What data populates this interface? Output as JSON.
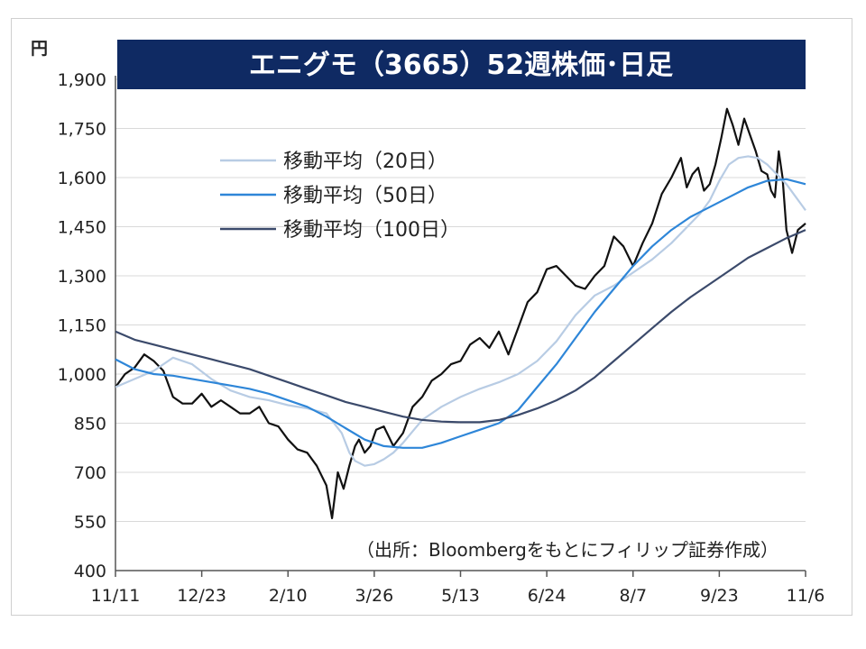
{
  "chart_data": {
    "type": "line",
    "title": "エニグモ（3665）52週株価･日足",
    "unit_label": "円",
    "source_note": "（出所：Bloombergをもとにフィリップ証券作成）",
    "ylim": [
      400,
      1900
    ],
    "y_ticks": [
      400,
      550,
      700,
      850,
      1000,
      1150,
      1300,
      1450,
      1600,
      1750,
      1900
    ],
    "y_tick_labels": [
      "400",
      "550",
      "700",
      "850",
      "1,000",
      "1,150",
      "1,300",
      "1,450",
      "1,600",
      "1,750",
      "1,900"
    ],
    "x_tick_labels": [
      "11/11",
      "12/23",
      "2/10",
      "3/26",
      "5/13",
      "6/24",
      "8/7",
      "9/23",
      "11/6"
    ],
    "x_range": [
      0,
      360
    ],
    "x_ticks": [
      0,
      45,
      90,
      135,
      180,
      225,
      270,
      315,
      360
    ],
    "grid": true,
    "legend_position": "top-left",
    "series": [
      {
        "name": "移動平均（20日）",
        "color": "#b8cce4",
        "x": [
          0,
          10,
          20,
          30,
          40,
          50,
          60,
          70,
          80,
          90,
          100,
          110,
          118,
          122,
          125,
          130,
          135,
          140,
          145,
          150,
          155,
          160,
          170,
          180,
          190,
          200,
          210,
          220,
          230,
          240,
          250,
          260,
          270,
          280,
          290,
          300,
          305,
          310,
          315,
          320,
          325,
          330,
          335,
          340,
          345,
          350,
          355,
          360
        ],
        "values": [
          960,
          985,
          1010,
          1050,
          1030,
          985,
          950,
          930,
          920,
          905,
          895,
          880,
          820,
          760,
          735,
          720,
          725,
          740,
          760,
          790,
          825,
          860,
          900,
          930,
          955,
          975,
          1000,
          1040,
          1100,
          1180,
          1240,
          1270,
          1310,
          1350,
          1400,
          1460,
          1490,
          1530,
          1590,
          1640,
          1660,
          1665,
          1660,
          1640,
          1610,
          1580,
          1540,
          1500
        ]
      },
      {
        "name": "移動平均（50日）",
        "color": "#2e86d8",
        "x": [
          0,
          10,
          20,
          30,
          40,
          50,
          60,
          70,
          80,
          90,
          100,
          110,
          120,
          130,
          140,
          150,
          160,
          170,
          180,
          190,
          200,
          210,
          220,
          230,
          240,
          250,
          260,
          270,
          280,
          290,
          300,
          310,
          320,
          330,
          340,
          350,
          360
        ],
        "values": [
          1045,
          1015,
          1000,
          995,
          985,
          975,
          965,
          955,
          940,
          920,
          900,
          870,
          835,
          800,
          780,
          775,
          775,
          790,
          810,
          830,
          850,
          890,
          960,
          1030,
          1110,
          1190,
          1260,
          1330,
          1390,
          1440,
          1480,
          1510,
          1540,
          1570,
          1590,
          1595,
          1580
        ]
      },
      {
        "name": "移動平均（100日）",
        "color": "#3b4a6b",
        "x": [
          0,
          10,
          20,
          30,
          40,
          50,
          60,
          70,
          80,
          90,
          100,
          110,
          120,
          130,
          140,
          150,
          160,
          170,
          180,
          190,
          200,
          210,
          220,
          230,
          240,
          250,
          260,
          270,
          280,
          290,
          300,
          310,
          320,
          330,
          340,
          350,
          360
        ],
        "values": [
          1130,
          1105,
          1090,
          1075,
          1060,
          1045,
          1030,
          1015,
          995,
          975,
          955,
          935,
          915,
          900,
          885,
          870,
          860,
          855,
          853,
          853,
          860,
          875,
          895,
          920,
          950,
          990,
          1040,
          1090,
          1140,
          1190,
          1235,
          1275,
          1315,
          1355,
          1385,
          1415,
          1440
        ]
      },
      {
        "name": "",
        "color": "#111111",
        "x": [
          0,
          5,
          10,
          15,
          20,
          25,
          30,
          35,
          40,
          45,
          50,
          55,
          60,
          65,
          70,
          75,
          80,
          85,
          90,
          95,
          100,
          105,
          110,
          113,
          116,
          119,
          122,
          125,
          127,
          130,
          133,
          136,
          140,
          145,
          150,
          155,
          160,
          165,
          170,
          175,
          180,
          185,
          190,
          195,
          200,
          205,
          210,
          215,
          220,
          225,
          230,
          235,
          240,
          245,
          250,
          255,
          260,
          265,
          270,
          275,
          280,
          285,
          290,
          295,
          298,
          301,
          304,
          307,
          310,
          313,
          316,
          319,
          322,
          325,
          328,
          331,
          334,
          337,
          340,
          342,
          344,
          346,
          348,
          350,
          353,
          356,
          360
        ],
        "values": [
          960,
          1000,
          1020,
          1060,
          1040,
          1010,
          930,
          910,
          910,
          940,
          900,
          920,
          900,
          880,
          880,
          900,
          850,
          840,
          800,
          770,
          760,
          720,
          660,
          560,
          700,
          650,
          720,
          780,
          800,
          760,
          780,
          830,
          840,
          780,
          820,
          900,
          930,
          980,
          1000,
          1030,
          1040,
          1090,
          1110,
          1080,
          1130,
          1060,
          1140,
          1220,
          1250,
          1320,
          1330,
          1300,
          1270,
          1260,
          1300,
          1330,
          1420,
          1390,
          1330,
          1400,
          1460,
          1550,
          1600,
          1660,
          1570,
          1610,
          1630,
          1560,
          1580,
          1640,
          1720,
          1810,
          1760,
          1700,
          1780,
          1730,
          1680,
          1620,
          1610,
          1560,
          1540,
          1680,
          1600,
          1440,
          1370,
          1440,
          1460
        ]
      }
    ]
  }
}
